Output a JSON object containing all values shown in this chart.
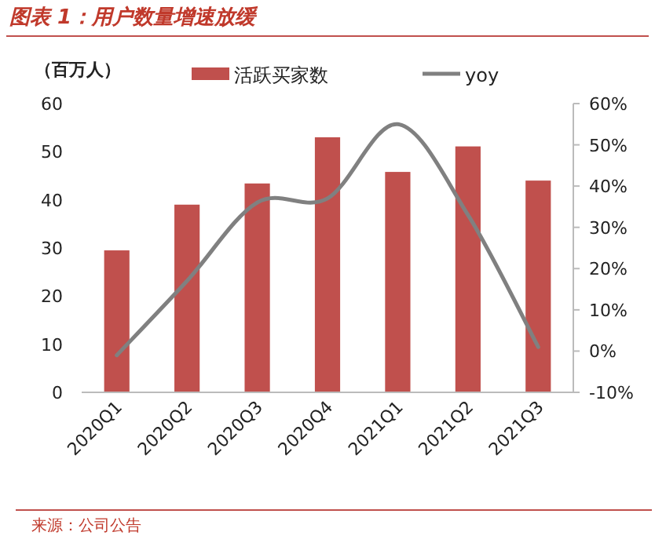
{
  "chart_data": {
    "type": "bar",
    "title": "图表 1：用户数量增速放缓",
    "ylabel": "（百万人）",
    "annotations": [
      "来源：公司公告"
    ],
    "categories": [
      "2020Q1",
      "2020Q2",
      "2020Q3",
      "2020Q4",
      "2021Q1",
      "2021Q2",
      "2021Q3"
    ],
    "series": [
      {
        "name": "活跃买家数",
        "color": "#c0504d",
        "values": [
          29.5,
          39.0,
          43.4,
          53.0,
          45.8,
          51.1,
          44.0
        ]
      },
      {
        "name": "yoy",
        "type": "line",
        "axis": "y2",
        "color": "#808080",
        "values": [
          -1,
          17,
          36,
          37,
          55,
          33,
          1
        ]
      }
    ],
    "ylim": [
      0,
      60
    ],
    "yticks": [
      0,
      10,
      20,
      30,
      40,
      50,
      60
    ],
    "y2lim": [
      -10,
      60
    ],
    "y2ticks": [
      {
        "value": -10,
        "label": "-10%"
      },
      {
        "value": 0,
        "label": "0%"
      },
      {
        "value": 10,
        "label": "10%"
      },
      {
        "value": 20,
        "label": "20%"
      },
      {
        "value": 30,
        "label": "30%"
      },
      {
        "value": 40,
        "label": "40%"
      },
      {
        "value": 50,
        "label": "50%"
      },
      {
        "value": 60,
        "label": "60%"
      }
    ],
    "legend": "top"
  }
}
